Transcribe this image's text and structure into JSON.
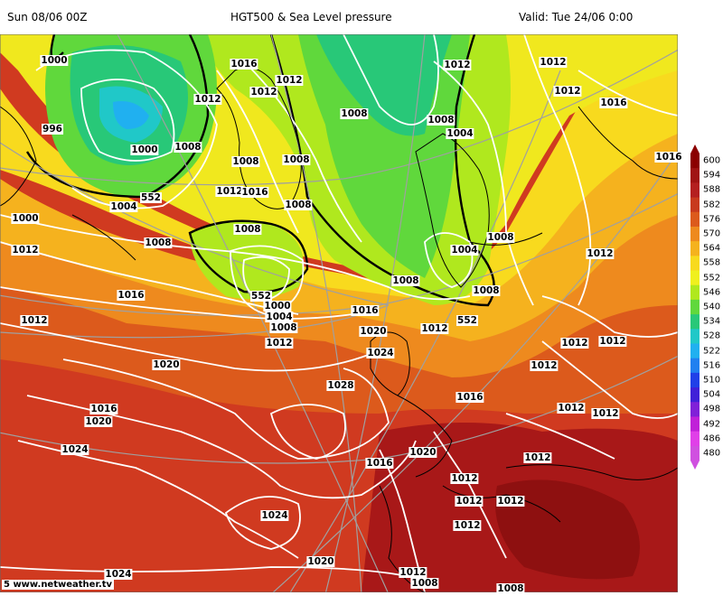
{
  "header": {
    "run": "Sun 08/06 00Z",
    "title": "HGT500 & Sea Level pressure",
    "valid": "Valid: Tue 24/06 0:00"
  },
  "footer": {
    "credit": "5 www.netweather.tv"
  },
  "legend": {
    "values": [
      "600",
      "594",
      "588",
      "582",
      "576",
      "570",
      "564",
      "558",
      "552",
      "546",
      "540",
      "534",
      "528",
      "522",
      "516",
      "510",
      "504",
      "498",
      "492",
      "486",
      "480"
    ],
    "colors": [
      "#8b0000",
      "#a01414",
      "#b42020",
      "#c83a1e",
      "#dc5a1c",
      "#ee8a1e",
      "#f5b21e",
      "#f8da1e",
      "#f0f01e",
      "#b0e81e",
      "#60d83c",
      "#28c878",
      "#20c8c8",
      "#20b0f0",
      "#2080f0",
      "#2040e8",
      "#4020d8",
      "#8020d8",
      "#c020d8",
      "#e040e8",
      "#d050e0"
    ]
  },
  "isobars": [
    {
      "text": "1000"
    },
    {
      "text": "996"
    },
    {
      "text": "1000"
    },
    {
      "text": "1008"
    },
    {
      "text": "1012"
    },
    {
      "text": "1016"
    },
    {
      "text": "1012"
    },
    {
      "text": "1004"
    },
    {
      "text": "552"
    },
    {
      "text": "1000"
    },
    {
      "text": "1008"
    },
    {
      "text": "1012"
    },
    {
      "text": "1016"
    },
    {
      "text": "1008"
    },
    {
      "text": "1008"
    },
    {
      "text": "1012"
    },
    {
      "text": "1008"
    },
    {
      "text": "1008"
    },
    {
      "text": "1008"
    },
    {
      "text": "1012"
    },
    {
      "text": "1012"
    },
    {
      "text": "1012"
    },
    {
      "text": "1016"
    },
    {
      "text": "1008"
    },
    {
      "text": "1004"
    },
    {
      "text": "1008"
    },
    {
      "text": "1004"
    },
    {
      "text": "1008"
    },
    {
      "text": "1008"
    },
    {
      "text": "552"
    },
    {
      "text": "1016"
    },
    {
      "text": "1012"
    },
    {
      "text": "1000"
    },
    {
      "text": "1004"
    },
    {
      "text": "1008"
    },
    {
      "text": "1012"
    },
    {
      "text": "552"
    },
    {
      "text": "1016"
    },
    {
      "text": "1020"
    },
    {
      "text": "1024"
    },
    {
      "text": "1012"
    },
    {
      "text": "1012"
    },
    {
      "text": "1012"
    },
    {
      "text": "1012"
    },
    {
      "text": "1012"
    },
    {
      "text": "1012"
    },
    {
      "text": "1016"
    },
    {
      "text": "1020"
    },
    {
      "text": "1016"
    },
    {
      "text": "1020"
    },
    {
      "text": "1028"
    },
    {
      "text": "1024"
    },
    {
      "text": "1020"
    },
    {
      "text": "1016"
    },
    {
      "text": "1012"
    },
    {
      "text": "1012"
    },
    {
      "text": "1012"
    },
    {
      "text": "1012"
    },
    {
      "text": "1012"
    },
    {
      "text": "1024"
    },
    {
      "text": "1020"
    },
    {
      "text": "1024"
    },
    {
      "text": "1012"
    },
    {
      "text": "1008"
    },
    {
      "text": "1008"
    },
    {
      "text": "1012"
    },
    {
      "text": "1012"
    },
    {
      "text": "1016"
    }
  ]
}
